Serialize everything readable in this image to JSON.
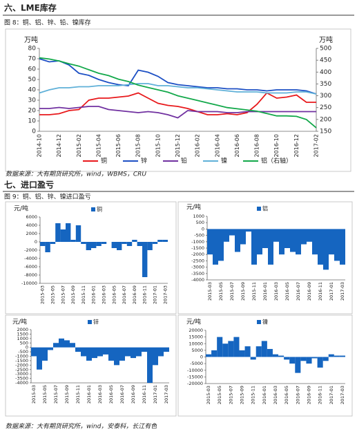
{
  "headings": [
    "六、LME库存",
    "七、进口盈亏"
  ],
  "captions": [
    "图 8：铜、铝、锌、铅、镍库存",
    "图 9：铜、铝、锌、镍进口盈亏"
  ],
  "sources": [
    "数据来源：大有期货研究所，wind，WBMS，CRU",
    "数据来源：大有期货研究所，wind，安泰科，长江有色"
  ],
  "chart_data": [
    {
      "type": "line",
      "y_label": "万吨",
      "y2_label": "万吨",
      "categories": [
        "2014-10",
        null,
        "2014-12",
        null,
        "2015-02",
        null,
        "2015-04",
        null,
        "2015-06",
        null,
        "2015-08",
        null,
        "2015-10",
        null,
        "2015-12",
        null,
        "2016-02",
        null,
        "2016-04",
        null,
        "2016-06",
        null,
        "2016-08",
        null,
        "2016-10",
        null,
        "2016-12",
        null,
        "2017-02"
      ],
      "ylim": [
        0,
        80
      ],
      "yticks": [
        0,
        10,
        20,
        30,
        40,
        50,
        60,
        70,
        80
      ],
      "y2lim": [
        150,
        500
      ],
      "y2ticks": [
        150,
        200,
        250,
        300,
        350,
        400,
        450,
        500
      ],
      "series": [
        {
          "name": "铜",
          "color": "#e8181b",
          "values": [
            16,
            16,
            17,
            20,
            21,
            30,
            32,
            32,
            33,
            34,
            37,
            32,
            27,
            25,
            24,
            22,
            19,
            16,
            16,
            17,
            16,
            18,
            26,
            37,
            32,
            33,
            35,
            28,
            28
          ]
        },
        {
          "name": "锌",
          "color": "#1c4fc4",
          "values": [
            70,
            67,
            68,
            64,
            56,
            54,
            50,
            47,
            45,
            44,
            59,
            57,
            53,
            47,
            45,
            44,
            43,
            42,
            42,
            41,
            41,
            40,
            40,
            39,
            40,
            40,
            40,
            39,
            36
          ]
        },
        {
          "name": "铅",
          "color": "#7030a0",
          "values": [
            22,
            22,
            23,
            22,
            23,
            24,
            24,
            21,
            20,
            19,
            18,
            19,
            18,
            16,
            13,
            20,
            19,
            19,
            19,
            18,
            18,
            19,
            19,
            19,
            19,
            19,
            19,
            19,
            19
          ]
        },
        {
          "name": "镍",
          "color": "#5fb0d8",
          "values": [
            37,
            40,
            42,
            42,
            43,
            43,
            44,
            44,
            44,
            45,
            46,
            46,
            44,
            44,
            43,
            42,
            42,
            41,
            40,
            39,
            38,
            38,
            38,
            37,
            37,
            37,
            38,
            38,
            36
          ]
        },
        {
          "name": "铝（右轴）",
          "color": "#12a84a",
          "axis": "y2",
          "values": [
            460,
            455,
            447,
            435,
            425,
            410,
            395,
            385,
            370,
            360,
            345,
            335,
            325,
            315,
            300,
            290,
            280,
            270,
            260,
            250,
            245,
            240,
            235,
            225,
            215,
            215,
            213,
            200,
            165
          ]
        }
      ]
    },
    {
      "type": "bar",
      "y_label": "元/吨",
      "categories": [
        "2015-03",
        null,
        "2015-05",
        null,
        "2015-07",
        null,
        "2015-09",
        null,
        "2015-11",
        null,
        "2016-01",
        null,
        "2016-03",
        null,
        "2016-05",
        null,
        "2016-07",
        null,
        "2016-09",
        null,
        "2016-11",
        null,
        "2017-01",
        null,
        "2017-03"
      ],
      "ylim": [
        -10000,
        6000
      ],
      "yticks": [
        -10000,
        -8000,
        -6000,
        -4000,
        -2000,
        0,
        2000,
        4000,
        6000
      ],
      "series": [
        {
          "name": "铜",
          "color": "#1565c0",
          "values": [
            -1000,
            -2500,
            -500,
            4500,
            3000,
            4500,
            500,
            4000,
            -500,
            -2000,
            -1500,
            -1000,
            -500,
            0,
            -1500,
            -2000,
            -500,
            -1000,
            500,
            -1000,
            -8500,
            -2000,
            -500,
            500,
            500
          ]
        }
      ]
    },
    {
      "type": "bar",
      "y_label": "元/吨",
      "categories": [
        "2015-03",
        null,
        "2015-05",
        null,
        "2015-07",
        null,
        "2015-09",
        null,
        "2015-11",
        null,
        "2016-01",
        null,
        "2016-03",
        null,
        "2016-05",
        null,
        "2016-07",
        null,
        "2016-09",
        null,
        "2016-11",
        null,
        "2017-01",
        null,
        "2017-03"
      ],
      "ylim": [
        -4000,
        1000
      ],
      "yticks": [
        -4000,
        -3500,
        -3000,
        -2500,
        -2000,
        -1500,
        -1000,
        -500,
        0,
        500,
        1000
      ],
      "series": [
        {
          "name": "铝",
          "color": "#1565c0",
          "values": [
            -2000,
            -2800,
            -2500,
            -1000,
            -500,
            -1800,
            -1200,
            -200,
            -2800,
            -2000,
            -1500,
            -2800,
            -1000,
            -2000,
            -1500,
            -1800,
            -2000,
            -1200,
            -1000,
            -2000,
            -2800,
            -3200,
            -2000,
            -2500,
            -2800
          ]
        }
      ]
    },
    {
      "type": "bar",
      "y_label": "元/吨",
      "categories": [
        "2015-03",
        null,
        "2015-05",
        null,
        "2015-07",
        null,
        "2015-09",
        null,
        "2015-11",
        null,
        "2016-01",
        null,
        "2016-03",
        null,
        "2016-05",
        null,
        "2016-07",
        null,
        "2016-09",
        null,
        "2016-11",
        null,
        "2017-01",
        null,
        "2017-03"
      ],
      "ylim": [
        -4000,
        2000
      ],
      "yticks": [
        -4000,
        -3500,
        -3000,
        -2500,
        -2000,
        -1500,
        -1000,
        -500,
        0,
        500,
        1000,
        1500,
        2000
      ],
      "series": [
        {
          "name": "锌",
          "color": "#1565c0",
          "values": [
            -1000,
            -2500,
            -1500,
            -300,
            500,
            1000,
            800,
            500,
            -500,
            -1000,
            -1500,
            -1200,
            -1000,
            -800,
            -1500,
            -2000,
            -1500,
            -1000,
            -1200,
            -1000,
            -500,
            -4000,
            -2000,
            -1000,
            -500
          ]
        }
      ]
    },
    {
      "type": "bar",
      "y_label": "元/吨",
      "categories": [
        "2015-03",
        null,
        "2015-05",
        null,
        "2015-07",
        null,
        "2015-09",
        null,
        "2015-11",
        null,
        "2016-01",
        null,
        "2016-03",
        null,
        "2016-05",
        null,
        "2016-07",
        null,
        "2016-09",
        null,
        "2016-11",
        null,
        "2017-01",
        null,
        "2017-03"
      ],
      "ylim": [
        -20000,
        20000
      ],
      "yticks": [
        -20000,
        -15000,
        -10000,
        -5000,
        0,
        5000,
        10000,
        15000,
        20000
      ],
      "series": [
        {
          "name": "镍",
          "color": "#1565c0",
          "values": [
            2000,
            5000,
            15000,
            10000,
            12000,
            15000,
            5000,
            8000,
            -2000,
            8000,
            12000,
            6000,
            2000,
            1000,
            -2000,
            -5000,
            -12000,
            -3000,
            -5000,
            -1000,
            -8000,
            -3000,
            2000,
            1000,
            1000
          ]
        }
      ]
    }
  ]
}
